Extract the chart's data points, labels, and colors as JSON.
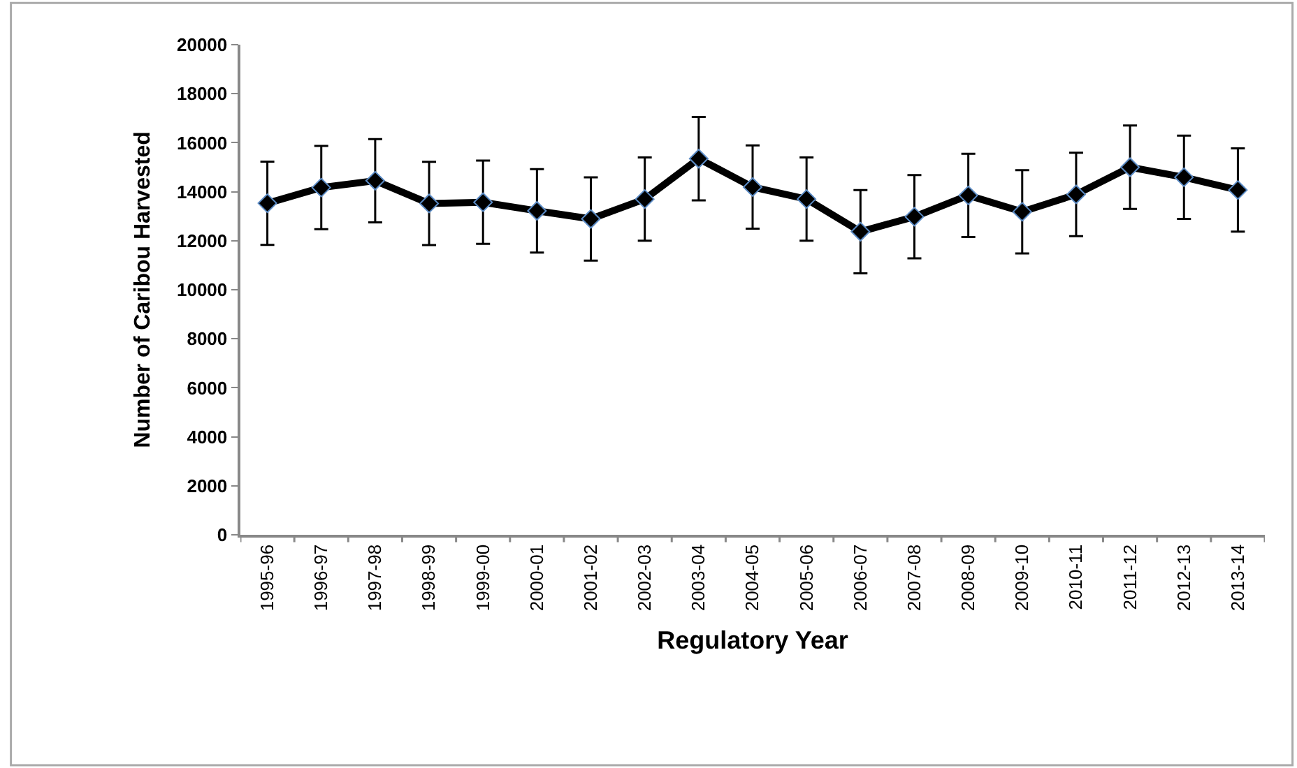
{
  "chart_data": {
    "type": "line",
    "xlabel": "Regulatory Year",
    "ylabel": "Number of Caribou Harvested",
    "categories": [
      "1995-96",
      "1996-97",
      "1997-98",
      "1998-99",
      "1999-00",
      "2000-01",
      "2001-02",
      "2002-03",
      "2003-04",
      "2004-05",
      "2005-06",
      "2006-07",
      "2007-08",
      "2008-09",
      "2009-10",
      "2010-11",
      "2011-12",
      "2012-13",
      "2013-14"
    ],
    "series": [
      {
        "color": "#000000",
        "values": [
          13530,
          14170,
          14450,
          13520,
          13570,
          13220,
          12890,
          13700,
          15350,
          14190,
          13700,
          12370,
          12980,
          13850,
          13180,
          13890,
          15000,
          14590,
          14070
        ],
        "errors": [
          1700,
          1700,
          1700,
          1700,
          1700,
          1700,
          1700,
          1700,
          1700,
          1700,
          1700,
          1700,
          1700,
          1700,
          1700,
          1700,
          1700,
          1700,
          1700
        ]
      }
    ],
    "ylim": [
      0,
      20000
    ],
    "yticks": [
      0,
      2000,
      4000,
      6000,
      8000,
      10000,
      12000,
      14000,
      16000,
      18000,
      20000
    ],
    "legend": false,
    "marker": "diamond",
    "line_style": "solid"
  }
}
